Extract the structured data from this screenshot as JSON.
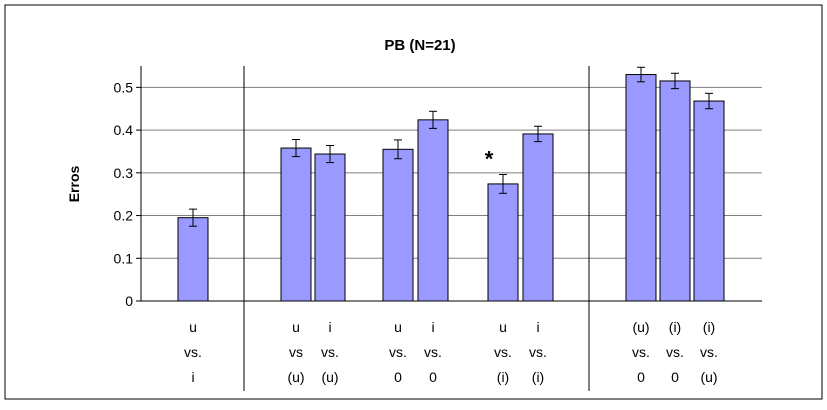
{
  "chart_data": {
    "type": "bar",
    "title": "PB (N=21)",
    "ylabel": "Erros",
    "xlabel": "",
    "ylim": [
      0,
      0.55
    ],
    "yticks": [
      "0",
      "0.1",
      "0.2",
      "0.3",
      "0.4",
      "0.5"
    ],
    "ytick_values": [
      0,
      0.1,
      0.2,
      0.3,
      0.4,
      0.5
    ],
    "grid": true,
    "legend": "none",
    "bar_color": "#9999ff",
    "bars": [
      {
        "label": [
          "u",
          "vs.",
          "i"
        ],
        "value": 0.195,
        "err": 0.02,
        "group": 0
      },
      {
        "label": [
          "u",
          "vs",
          "(u)"
        ],
        "value": 0.358,
        "err": 0.02,
        "group": 1
      },
      {
        "label": [
          "i",
          "vs.",
          "(u)"
        ],
        "value": 0.344,
        "err": 0.02,
        "group": 1
      },
      {
        "label": [
          "u",
          "vs.",
          "0"
        ],
        "value": 0.355,
        "err": 0.022,
        "group": 1
      },
      {
        "label": [
          "i",
          "vs.",
          "0"
        ],
        "value": 0.424,
        "err": 0.02,
        "group": 1
      },
      {
        "label": [
          "u",
          "vs.",
          "(i)"
        ],
        "value": 0.274,
        "err": 0.022,
        "group": 1,
        "annotation": "*"
      },
      {
        "label": [
          "i",
          "vs.",
          "(i)"
        ],
        "value": 0.391,
        "err": 0.018,
        "group": 1
      },
      {
        "label": [
          "(u)",
          "vs.",
          "0"
        ],
        "value": 0.53,
        "err": 0.017,
        "group": 2
      },
      {
        "label": [
          "(i)",
          "vs.",
          "0"
        ],
        "value": 0.515,
        "err": 0.018,
        "group": 2
      },
      {
        "label": [
          "(i)",
          "vs.",
          "(u)"
        ],
        "value": 0.468,
        "err": 0.018,
        "group": 2
      }
    ]
  }
}
